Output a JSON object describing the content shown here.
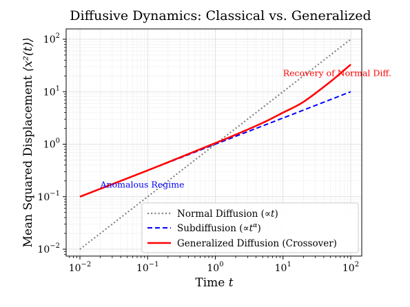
{
  "chart_data": {
    "type": "line",
    "title": "Diffusive Dynamics: Classical vs. Generalized",
    "xlabel": "Time",
    "xlabel_var": "t",
    "ylabel": "Mean Squared Displacement",
    "ylabel_var": "⟨x²(t)⟩",
    "xscale": "log",
    "yscale": "log",
    "xlim": [
      0.01,
      100
    ],
    "ylim": [
      0.01,
      100
    ],
    "grid": true,
    "legend_position": "lower-right",
    "x_ticks": [
      {
        "value": 0.01,
        "base": "10",
        "exp": "−2"
      },
      {
        "value": 0.1,
        "base": "10",
        "exp": "−1"
      },
      {
        "value": 1,
        "base": "10",
        "exp": "0"
      },
      {
        "value": 10,
        "base": "10",
        "exp": "1"
      },
      {
        "value": 100,
        "base": "10",
        "exp": "2"
      }
    ],
    "y_ticks": [
      {
        "value": 0.01,
        "base": "10",
        "exp": "−2"
      },
      {
        "value": 0.1,
        "base": "10",
        "exp": "−1"
      },
      {
        "value": 1,
        "base": "10",
        "exp": "0"
      },
      {
        "value": 10,
        "base": "10",
        "exp": "1"
      },
      {
        "value": 100,
        "base": "10",
        "exp": "2"
      }
    ],
    "series": [
      {
        "name": "Normal Diffusion (∝t)",
        "color": "#808080",
        "style": "dotted",
        "x": [
          0.01,
          0.1,
          1,
          10,
          100
        ],
        "y": [
          0.01,
          0.1,
          1,
          10,
          100
        ]
      },
      {
        "name": "Subdiffusion (∝t^α)",
        "color": "#0000ff",
        "style": "dashed",
        "x": [
          0.01,
          0.1,
          1,
          10,
          100
        ],
        "y": [
          0.1,
          0.316,
          1,
          3.16,
          10
        ]
      },
      {
        "name": "Generalized Diffusion (Crossover)",
        "color": "#ff0000",
        "style": "solid",
        "x": [
          0.01,
          0.1,
          1,
          2,
          5,
          10,
          20,
          50,
          100
        ],
        "y": [
          0.1,
          0.317,
          1.05,
          1.52,
          2.55,
          4.0,
          6.4,
          15.5,
          33
        ]
      }
    ],
    "legend": [
      {
        "text": "Normal Diffusion (",
        "math": "∝t",
        "tail": ")"
      },
      {
        "text": "Subdiffusion (",
        "math": "∝t",
        "sup": "α",
        "tail": ")"
      },
      {
        "text": "Generalized Diffusion (Crossover)",
        "math": "",
        "tail": ""
      }
    ],
    "annotations": [
      {
        "text": "Anomalous Regime",
        "x": 0.02,
        "y": 0.15,
        "color": "#0000ff"
      },
      {
        "text": "Recovery of Normal Diff.",
        "x": 10,
        "y": 20,
        "color": "#ff0000"
      }
    ]
  }
}
